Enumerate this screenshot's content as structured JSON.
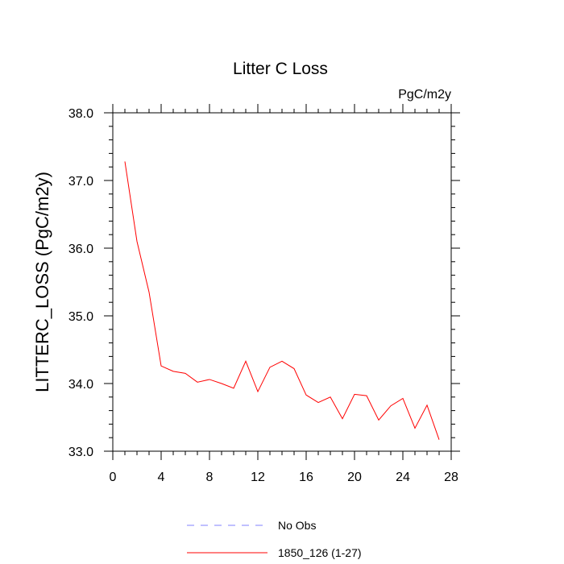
{
  "chart_data": {
    "type": "line",
    "title": "Litter C Loss",
    "units_label": "PgC/m2y",
    "ylabel": "LITTERC_LOSS  (PgC/m2y)",
    "xlabel": "",
    "xlim": [
      0,
      28
    ],
    "ylim": [
      33.0,
      38.0
    ],
    "x_ticks": [
      0,
      4,
      8,
      12,
      16,
      20,
      24,
      28
    ],
    "x_tick_labels": [
      "0",
      "4",
      "8",
      "12",
      "16",
      "20",
      "24",
      "28"
    ],
    "y_ticks": [
      33.0,
      34.0,
      35.0,
      36.0,
      37.0,
      38.0
    ],
    "y_tick_labels": [
      "33.0",
      "34.0",
      "35.0",
      "36.0",
      "37.0",
      "38.0"
    ],
    "grid": false,
    "legend_position": "bottom",
    "series": [
      {
        "name": "1850_126 (1-27)",
        "color": "#ff0000",
        "style": "solid",
        "x": [
          1,
          2,
          3,
          4,
          5,
          6,
          7,
          8,
          9,
          10,
          11,
          12,
          13,
          14,
          15,
          16,
          17,
          18,
          19,
          20,
          21,
          22,
          23,
          24,
          25,
          26,
          27
        ],
        "y": [
          37.28,
          36.1,
          35.35,
          34.26,
          34.18,
          34.15,
          34.02,
          34.06,
          34.0,
          33.93,
          34.33,
          33.88,
          34.24,
          34.33,
          34.22,
          33.83,
          33.72,
          33.8,
          33.48,
          33.84,
          33.82,
          33.46,
          33.67,
          33.78,
          33.34,
          33.68,
          33.17
        ]
      }
    ],
    "legend": [
      {
        "label": "No Obs",
        "color": "#8080ff",
        "style": "dashed"
      },
      {
        "label": "1850_126 (1-27)",
        "color": "#ff0000",
        "style": "solid"
      }
    ]
  }
}
